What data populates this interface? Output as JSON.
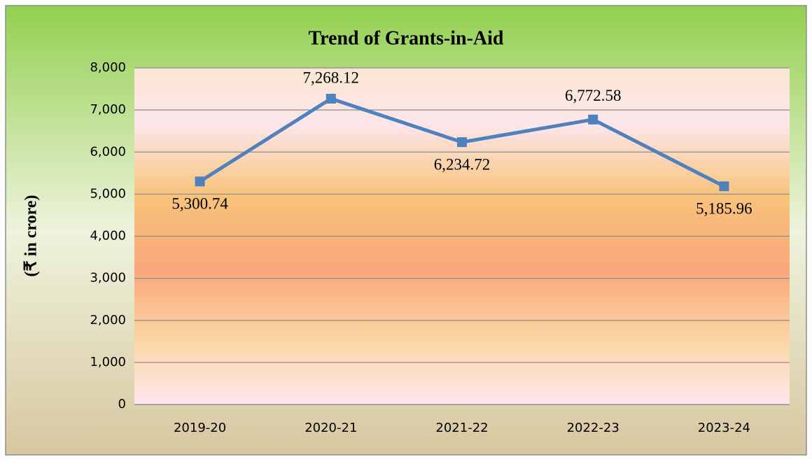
{
  "chart_data": {
    "type": "line",
    "title": "Trend of Grants-in-Aid",
    "y_label": "(₹ in crore)",
    "categories": [
      "2019-20",
      "2020-21",
      "2021-22",
      "2022-23",
      "2023-24"
    ],
    "series": [
      {
        "name": "Grants-in-Aid",
        "color": "#4f81bd",
        "values": [
          5300.74,
          7268.12,
          6234.72,
          6772.58,
          5185.96
        ],
        "value_labels": [
          "5,300.74",
          "7,268.12",
          "6,234.72",
          "6,772.58",
          "5,185.96"
        ]
      }
    ],
    "ylim": [
      0,
      8000
    ],
    "yticks": [
      0,
      {
        "value": 1000,
        "label": "1,000"
      },
      {
        "value": 2000,
        "label": "2,000"
      },
      {
        "value": 3000,
        "label": "3,000"
      },
      {
        "value": 4000,
        "label": "4,000"
      },
      {
        "value": 5000,
        "label": "5,000"
      },
      {
        "value": 6000,
        "label": "6,000"
      },
      {
        "value": 7000,
        "label": "7,000"
      },
      {
        "value": 8000,
        "label": "8,000"
      }
    ],
    "grid": true
  }
}
